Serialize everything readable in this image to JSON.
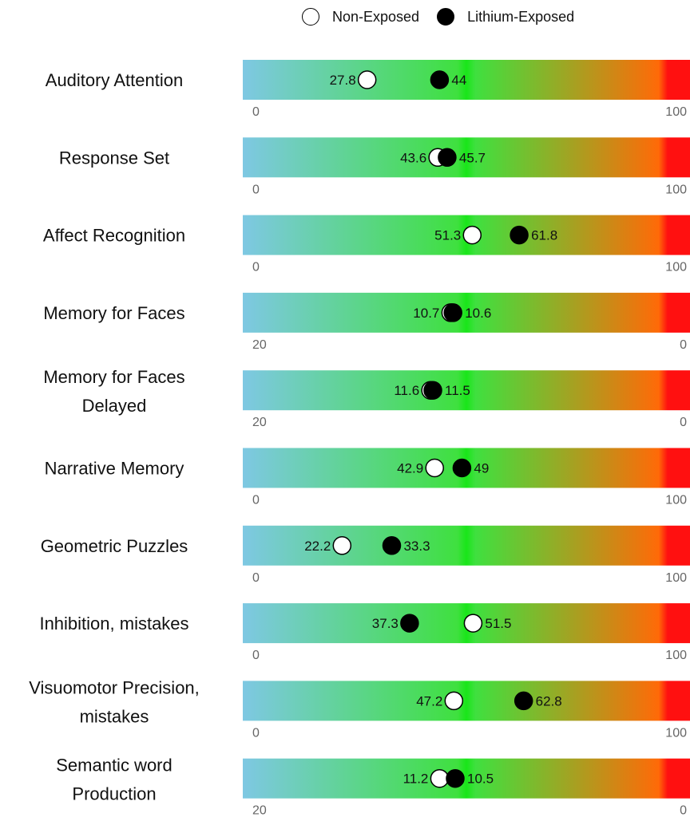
{
  "legend": {
    "non_exposed_label": "Non-Exposed",
    "lithium_exposed_label": "Lithium-Exposed"
  },
  "colors": {
    "gradient_low": "#7ec8e3",
    "gradient_mid": "#19e619",
    "gradient_high": "#ff1010",
    "marker_open": "#ffffff",
    "marker_filled": "#000000"
  },
  "chart_data": {
    "type": "scatter",
    "marker_shape": "circle",
    "series": [
      {
        "name": "Non-Exposed",
        "marker": "open"
      },
      {
        "name": "Lithium-Exposed",
        "marker": "filled"
      }
    ],
    "rows": [
      {
        "label": [
          "Auditory Attention"
        ],
        "scale": [
          0,
          100
        ],
        "non_exposed": 27.8,
        "lithium_exposed": 44,
        "non_exposed_text": "27.8",
        "lithium_exposed_text": "44",
        "tick_left": "0",
        "tick_right": "100"
      },
      {
        "label": [
          "Response Set"
        ],
        "scale": [
          0,
          100
        ],
        "non_exposed": 43.6,
        "lithium_exposed": 45.7,
        "non_exposed_text": "43.6",
        "lithium_exposed_text": "45.7",
        "tick_left": "0",
        "tick_right": "100"
      },
      {
        "label": [
          "Affect Recognition"
        ],
        "scale": [
          0,
          100
        ],
        "non_exposed": 51.3,
        "lithium_exposed": 61.8,
        "non_exposed_text": "51.3",
        "lithium_exposed_text": "61.8",
        "tick_left": "0",
        "tick_right": "100"
      },
      {
        "label": [
          "Memory for Faces"
        ],
        "scale": [
          20,
          0
        ],
        "non_exposed": 10.7,
        "lithium_exposed": 10.6,
        "non_exposed_text": "10.7",
        "lithium_exposed_text": "10.6",
        "tick_left": "20",
        "tick_right": "0"
      },
      {
        "label": [
          "Memory for Faces",
          "Delayed"
        ],
        "scale": [
          20,
          0
        ],
        "non_exposed": 11.6,
        "lithium_exposed": 11.5,
        "non_exposed_text": "11.6",
        "lithium_exposed_text": "11.5",
        "tick_left": "20",
        "tick_right": "0"
      },
      {
        "label": [
          "Narrative Memory"
        ],
        "scale": [
          0,
          100
        ],
        "non_exposed": 42.9,
        "lithium_exposed": 49,
        "non_exposed_text": "42.9",
        "lithium_exposed_text": "49",
        "tick_left": "0",
        "tick_right": "100"
      },
      {
        "label": [
          "Geometric Puzzles"
        ],
        "scale": [
          0,
          100
        ],
        "non_exposed": 22.2,
        "lithium_exposed": 33.3,
        "non_exposed_text": "22.2",
        "lithium_exposed_text": "33.3",
        "tick_left": "0",
        "tick_right": "100"
      },
      {
        "label": [
          "Inhibition, mistakes"
        ],
        "scale": [
          0,
          100
        ],
        "non_exposed": 51.5,
        "lithium_exposed": 37.3,
        "non_exposed_text": "51.5",
        "lithium_exposed_text": "37.3",
        "tick_left": "0",
        "tick_right": "100"
      },
      {
        "label": [
          "Visuomotor Precision,",
          "mistakes"
        ],
        "scale": [
          0,
          100
        ],
        "non_exposed": 47.2,
        "lithium_exposed": 62.8,
        "non_exposed_text": "47.2",
        "lithium_exposed_text": "62.8",
        "tick_left": "0",
        "tick_right": "100"
      },
      {
        "label": [
          "Semantic word",
          "Production"
        ],
        "scale": [
          20,
          0
        ],
        "non_exposed": 11.2,
        "lithium_exposed": 10.5,
        "non_exposed_text": "11.2",
        "lithium_exposed_text": "10.5",
        "tick_left": "20",
        "tick_right": "0"
      }
    ]
  }
}
